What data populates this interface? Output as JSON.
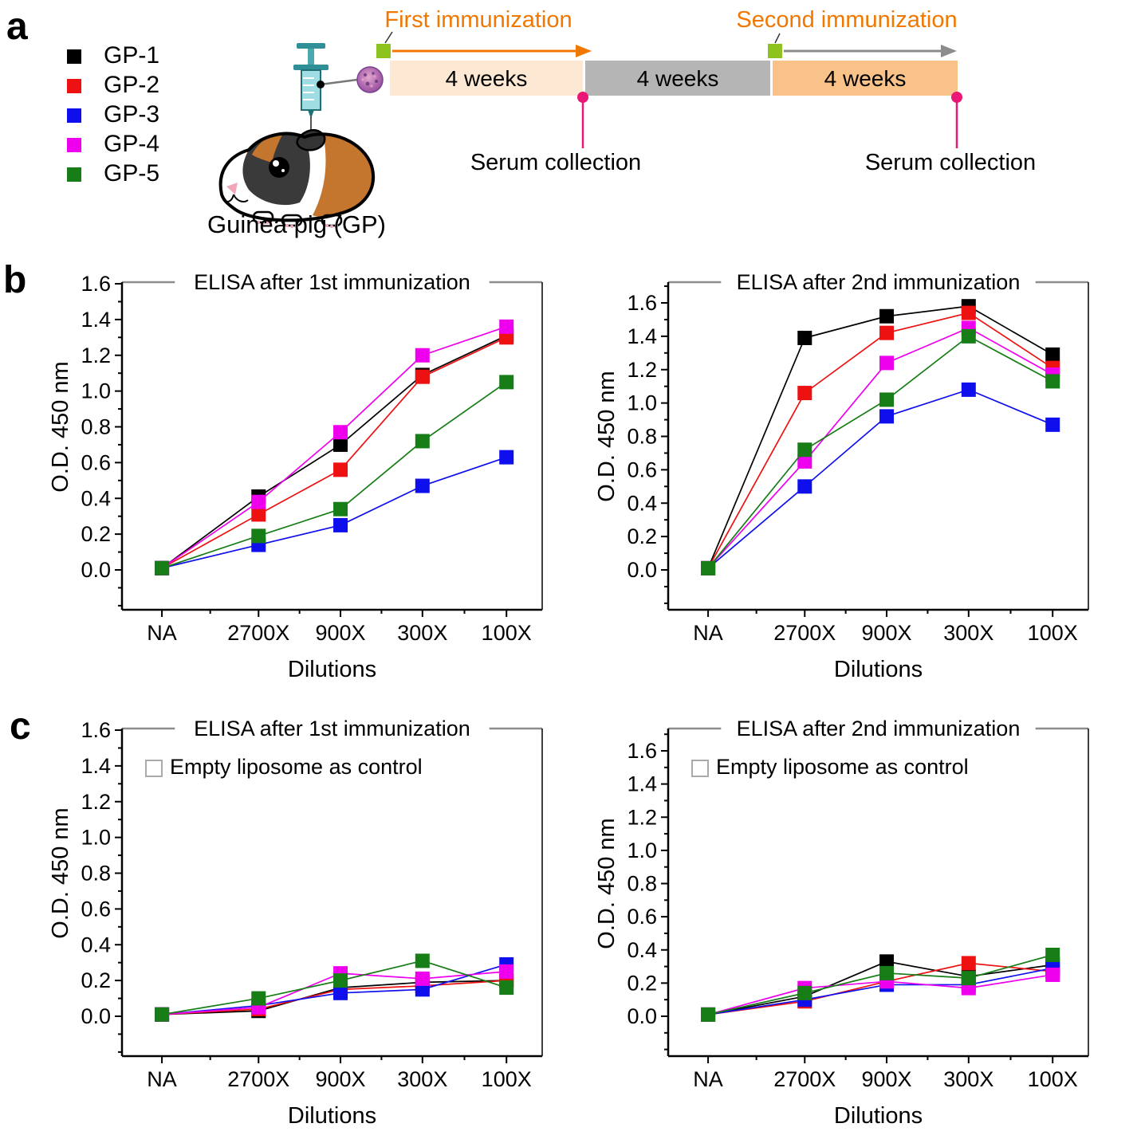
{
  "panels": {
    "a": "a",
    "b": "b",
    "c": "c"
  },
  "legend": {
    "items": [
      {
        "label": "GP-1",
        "color": "#000000"
      },
      {
        "label": "GP-2",
        "color": "#ee1111"
      },
      {
        "label": "GP-3",
        "color": "#0f0fee"
      },
      {
        "label": "GP-4",
        "color": "#ee00ee"
      },
      {
        "label": "GP-5",
        "color": "#177d17"
      }
    ]
  },
  "schematic": {
    "caption": "Guinea pig (GP)",
    "first_immunization_label": "First immunization",
    "second_immunization_label": "Second immunization",
    "serum_collection_label_first": "Serum collection",
    "serum_collection_label_second": "Serum collection",
    "week_blocks": [
      {
        "label": "4 weeks",
        "color": "#fde9d3"
      },
      {
        "label": "4 weeks",
        "color": "#b5b5b5"
      },
      {
        "label": "4 weeks",
        "color": "#f9c288"
      }
    ],
    "colors": {
      "immunization_text": "#f07800",
      "first_arrow": "#f07800",
      "second_arrow": "#8c8c8c",
      "immunization_marker": "#8dc21f",
      "serum_marker": "#ea1777"
    }
  },
  "chart_data": [
    {
      "id": "b-left",
      "type": "line",
      "title": "ELISA after 1st immunization",
      "xlabel": "Dilutions",
      "ylabel": "O.D. 450 nm",
      "ylim": [
        0,
        1.6
      ],
      "ytick_step": 0.2,
      "marker": "square",
      "grid": false,
      "legend_note": null,
      "categories": [
        "NA",
        "2700X",
        "900X",
        "300X",
        "100X"
      ],
      "series": [
        {
          "name": "GP-1",
          "color": "#000000",
          "values": [
            0.01,
            0.41,
            0.7,
            1.09,
            1.31
          ]
        },
        {
          "name": "GP-2",
          "color": "#ee1111",
          "values": [
            0.01,
            0.31,
            0.56,
            1.08,
            1.3
          ]
        },
        {
          "name": "GP-3",
          "color": "#0f0fee",
          "values": [
            0.01,
            0.14,
            0.25,
            0.47,
            0.63
          ]
        },
        {
          "name": "GP-4",
          "color": "#ee00ee",
          "values": [
            0.01,
            0.38,
            0.77,
            1.2,
            1.36
          ]
        },
        {
          "name": "GP-5",
          "color": "#177d17",
          "values": [
            0.01,
            0.19,
            0.34,
            0.72,
            1.05
          ]
        }
      ]
    },
    {
      "id": "b-right",
      "type": "line",
      "title": "ELISA after 2nd immunization",
      "xlabel": "Dilutions",
      "ylabel": "O.D. 450 nm",
      "ylim": [
        0,
        1.6
      ],
      "ytick_step": 0.2,
      "marker": "square",
      "grid": false,
      "legend_note": null,
      "categories": [
        "NA",
        "2700X",
        "900X",
        "300X",
        "100X"
      ],
      "series": [
        {
          "name": "GP-1",
          "color": "#000000",
          "values": [
            0.01,
            1.39,
            1.52,
            1.58,
            1.29
          ]
        },
        {
          "name": "GP-2",
          "color": "#ee1111",
          "values": [
            0.01,
            1.06,
            1.42,
            1.54,
            1.21
          ]
        },
        {
          "name": "GP-3",
          "color": "#0f0fee",
          "values": [
            0.01,
            0.5,
            0.92,
            1.08,
            0.87
          ]
        },
        {
          "name": "GP-4",
          "color": "#ee00ee",
          "values": [
            0.01,
            0.65,
            1.24,
            1.45,
            1.17
          ]
        },
        {
          "name": "GP-5",
          "color": "#177d17",
          "values": [
            0.01,
            0.72,
            1.02,
            1.4,
            1.13
          ]
        }
      ]
    },
    {
      "id": "c-left",
      "type": "line",
      "title": "ELISA after 1st immunization",
      "xlabel": "Dilutions",
      "ylabel": "O.D. 450 nm",
      "ylim": [
        0,
        1.6
      ],
      "ytick_step": 0.2,
      "marker": "square",
      "grid": false,
      "legend_note": "Empty liposome as control",
      "categories": [
        "NA",
        "2700X",
        "900X",
        "300X",
        "100X"
      ],
      "series": [
        {
          "name": "GP-1",
          "color": "#000000",
          "values": [
            0.01,
            0.03,
            0.16,
            0.19,
            0.2
          ]
        },
        {
          "name": "GP-2",
          "color": "#ee1111",
          "values": [
            0.01,
            0.04,
            0.15,
            0.17,
            0.2
          ]
        },
        {
          "name": "GP-3",
          "color": "#0f0fee",
          "values": [
            0.01,
            0.06,
            0.13,
            0.15,
            0.29
          ]
        },
        {
          "name": "GP-4",
          "color": "#ee00ee",
          "values": [
            0.01,
            0.05,
            0.24,
            0.21,
            0.25
          ]
        },
        {
          "name": "GP-5",
          "color": "#177d17",
          "values": [
            0.01,
            0.1,
            0.2,
            0.31,
            0.16
          ]
        }
      ]
    },
    {
      "id": "c-right",
      "type": "line",
      "title": "ELISA after 2nd immunization",
      "xlabel": "Dilutions",
      "ylabel": "O.D. 450 nm",
      "ylim": [
        0,
        1.6
      ],
      "ytick_step": 0.2,
      "marker": "square",
      "grid": false,
      "legend_note": "Empty liposome as control",
      "categories": [
        "NA",
        "2700X",
        "900X",
        "300X",
        "100X"
      ],
      "series": [
        {
          "name": "GP-1",
          "color": "#000000",
          "values": [
            0.01,
            0.12,
            0.33,
            0.24,
            0.31
          ]
        },
        {
          "name": "GP-2",
          "color": "#ee1111",
          "values": [
            0.01,
            0.09,
            0.21,
            0.32,
            0.27
          ]
        },
        {
          "name": "GP-3",
          "color": "#0f0fee",
          "values": [
            0.01,
            0.1,
            0.19,
            0.19,
            0.29
          ]
        },
        {
          "name": "GP-4",
          "color": "#ee00ee",
          "values": [
            0.01,
            0.17,
            0.21,
            0.17,
            0.25
          ]
        },
        {
          "name": "GP-5",
          "color": "#177d17",
          "values": [
            0.01,
            0.14,
            0.26,
            0.23,
            0.37
          ]
        }
      ]
    }
  ]
}
